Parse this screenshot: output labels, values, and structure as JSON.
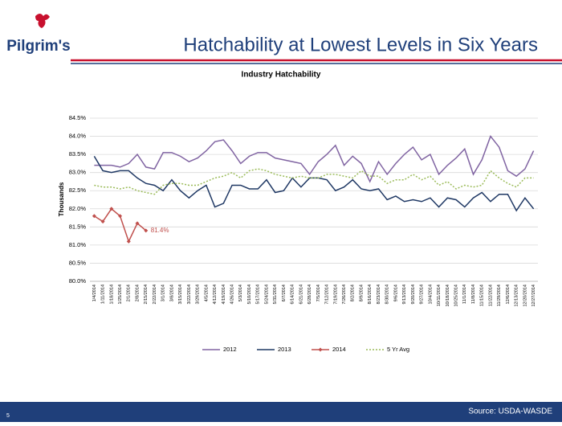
{
  "header": {
    "logo": "Pilgrim's",
    "title": "Hatchability at Lowest Levels in Six Years"
  },
  "footer": {
    "page": "5",
    "source": "Source: USDA-WASDE"
  },
  "chart_data": {
    "type": "line",
    "title": "Industry Hatchability",
    "y_label": "Thousands",
    "categories": [
      "1/4/2014",
      "1/11/2014",
      "1/18/2014",
      "1/25/2014",
      "2/1/2014",
      "2/8/2014",
      "2/15/2014",
      "2/22/2014",
      "3/1/2014",
      "3/8/2014",
      "3/15/2014",
      "3/22/2014",
      "3/29/2014",
      "4/5/2014",
      "4/12/2014",
      "4/19/2014",
      "4/26/2014",
      "5/3/2014",
      "5/10/2014",
      "5/17/2014",
      "5/24/2014",
      "5/31/2014",
      "6/7/2014",
      "6/14/2014",
      "6/21/2014",
      "6/28/2014",
      "7/5/2014",
      "7/12/2014",
      "7/19/2014",
      "7/26/2014",
      "8/2/2014",
      "8/9/2014",
      "8/16/2014",
      "8/23/2014",
      "8/30/2014",
      "9/6/2014",
      "9/13/2014",
      "9/20/2014",
      "9/27/2014",
      "10/4/2014",
      "10/11/2014",
      "10/18/2014",
      "10/25/2014",
      "11/1/2014",
      "11/8/2014",
      "11/15/2014",
      "11/22/2014",
      "11/29/2014",
      "12/6/2014",
      "12/13/2014",
      "12/20/2014",
      "12/27/2014"
    ],
    "series": [
      {
        "name": "2012",
        "color": "#8064a2",
        "style": "solid",
        "marker": false,
        "values": [
          83.2,
          83.2,
          83.2,
          83.15,
          83.25,
          83.5,
          83.15,
          83.1,
          83.55,
          83.55,
          83.45,
          83.3,
          83.4,
          83.6,
          83.85,
          83.9,
          83.6,
          83.25,
          83.45,
          83.55,
          83.55,
          83.4,
          83.35,
          83.3,
          83.25,
          82.95,
          83.3,
          83.5,
          83.75,
          83.2,
          83.45,
          83.25,
          82.75,
          83.3,
          82.95,
          83.25,
          83.5,
          83.7,
          83.35,
          83.5,
          82.95,
          83.2,
          83.4,
          83.65,
          82.95,
          83.35,
          84.0,
          83.7,
          83.05,
          82.9,
          83.1,
          83.6
        ]
      },
      {
        "name": "2013",
        "color": "#1f3864",
        "style": "solid",
        "marker": false,
        "values": [
          83.45,
          83.05,
          83.0,
          83.05,
          83.05,
          82.85,
          82.7,
          82.65,
          82.5,
          82.8,
          82.5,
          82.3,
          82.5,
          82.65,
          82.05,
          82.15,
          82.65,
          82.65,
          82.55,
          82.55,
          82.8,
          82.45,
          82.5,
          82.85,
          82.6,
          82.85,
          82.85,
          82.8,
          82.5,
          82.6,
          82.8,
          82.55,
          82.5,
          82.55,
          82.25,
          82.35,
          82.2,
          82.25,
          82.2,
          82.3,
          82.05,
          82.3,
          82.25,
          82.05,
          82.3,
          82.45,
          82.2,
          82.4,
          82.4,
          81.95,
          82.3,
          82.0
        ]
      },
      {
        "name": "2014",
        "color": "#c0504d",
        "style": "solid",
        "marker": true,
        "values": [
          81.8,
          81.65,
          82.0,
          81.8,
          81.1,
          81.6,
          81.4,
          null,
          null,
          null,
          null,
          null,
          null,
          null,
          null,
          null,
          null,
          null,
          null,
          null,
          null,
          null,
          null,
          null,
          null,
          null,
          null,
          null,
          null,
          null,
          null,
          null,
          null,
          null,
          null,
          null,
          null,
          null,
          null,
          null,
          null,
          null,
          null,
          null,
          null,
          null,
          null,
          null,
          null,
          null,
          null,
          null
        ],
        "value_labels": [
          null,
          null,
          null,
          null,
          null,
          null,
          "81.4%",
          null,
          null,
          null,
          null,
          null,
          null,
          null,
          null,
          null,
          null,
          null,
          null,
          null,
          null,
          null,
          null,
          null,
          null,
          null,
          null,
          null,
          null,
          null,
          null,
          null,
          null,
          null,
          null,
          null,
          null,
          null,
          null,
          null,
          null,
          null,
          null,
          null,
          null,
          null,
          null,
          null,
          null,
          null,
          null,
          null
        ]
      },
      {
        "name": "5 Yr Avg",
        "color": "#9bbb59",
        "style": "dotted",
        "marker": false,
        "values": [
          82.65,
          82.6,
          82.6,
          82.55,
          82.6,
          82.5,
          82.45,
          82.4,
          82.65,
          82.7,
          82.7,
          82.65,
          82.65,
          82.75,
          82.85,
          82.9,
          83.0,
          82.85,
          83.05,
          83.1,
          83.05,
          82.95,
          82.9,
          82.85,
          82.9,
          82.85,
          82.85,
          82.95,
          82.95,
          82.9,
          82.85,
          83.05,
          82.9,
          82.9,
          82.7,
          82.8,
          82.8,
          82.95,
          82.8,
          82.9,
          82.65,
          82.75,
          82.55,
          82.65,
          82.6,
          82.65,
          83.05,
          82.85,
          82.7,
          82.6,
          82.85,
          82.85
        ]
      }
    ],
    "ylim": [
      80.0,
      84.5
    ],
    "yticks": [
      {
        "value": 80.0,
        "label": "80.0%"
      },
      {
        "value": 80.5,
        "label": "80.5%"
      },
      {
        "value": 81.0,
        "label": "81.0%"
      },
      {
        "value": 81.5,
        "label": "81.5%"
      },
      {
        "value": 82.0,
        "label": "82.0%"
      },
      {
        "value": 82.5,
        "label": "82.5%"
      },
      {
        "value": 83.0,
        "label": "83.0%"
      },
      {
        "value": 83.5,
        "label": "83.5%"
      },
      {
        "value": 84.0,
        "label": "84.0%"
      },
      {
        "value": 84.5,
        "label": "84.5%"
      }
    ],
    "grid": true,
    "legend": "bottom"
  }
}
